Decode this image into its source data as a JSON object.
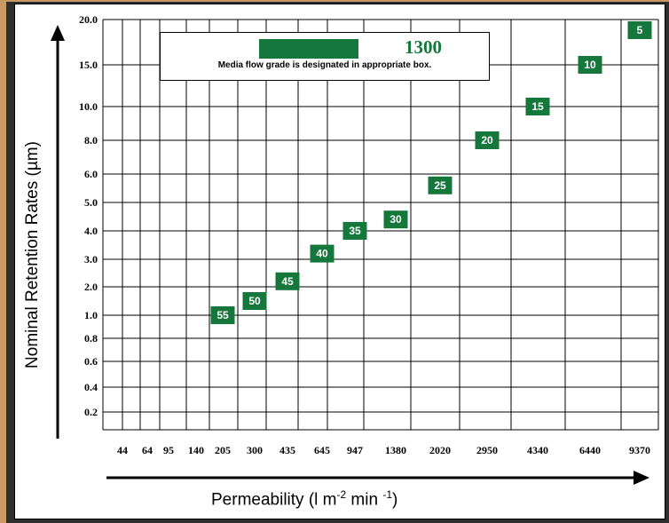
{
  "colors": {
    "green": "#15773b",
    "border": "#2e2e2e",
    "background": "#c99a64"
  },
  "chart_data": {
    "type": "scatter",
    "xlabel": {
      "main": "Permeability (l m",
      "sup1": "-2",
      "mid": " min ",
      "sup2": "-1",
      "end": ")"
    },
    "ylabel": "Nominal Retention Rates (µm)",
    "x_ticks": [
      "44",
      "64",
      "95",
      "140",
      "205",
      "300",
      "435",
      "645",
      "947",
      "1380",
      "2020",
      "2950",
      "4340",
      "6440",
      "9370"
    ],
    "y_ticks": [
      "0.2",
      "0.4",
      "0.6",
      "0.8",
      "1.0",
      "2.0",
      "3.0",
      "4.0",
      "5.0",
      "6.0",
      "8.0",
      "10.0",
      "15.0",
      "20.0"
    ],
    "legend": {
      "value": "1300",
      "note": "Media flow grade is designated in appropriate box."
    },
    "series": [
      {
        "points": [
          {
            "label": "55",
            "x": 205,
            "y": 1.0
          },
          {
            "label": "50",
            "x": 300,
            "y": 1.5
          },
          {
            "label": "45",
            "x": 435,
            "y": 2.2
          },
          {
            "label": "40",
            "x": 645,
            "y": 3.2
          },
          {
            "label": "35",
            "x": 947,
            "y": 4.0
          },
          {
            "label": "30",
            "x": 1380,
            "y": 4.4
          },
          {
            "label": "25",
            "x": 2020,
            "y": 5.6
          },
          {
            "label": "20",
            "x": 2950,
            "y": 8.0
          },
          {
            "label": "15",
            "x": 4340,
            "y": 10.0
          },
          {
            "label": "10",
            "x": 6440,
            "y": 15.0
          },
          {
            "label": "5",
            "x": 9370,
            "y": 20.0
          }
        ]
      }
    ]
  }
}
